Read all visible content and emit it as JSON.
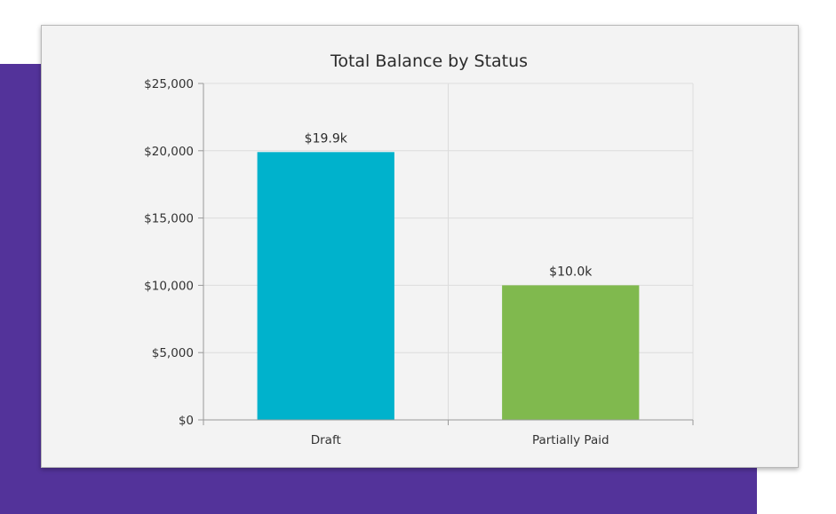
{
  "theme": {
    "backdrop_color": "#53339a",
    "card_background": "#f3f3f3",
    "grid_color": "#dcdcdc",
    "axis_color": "#9a9a9a"
  },
  "chart_data": {
    "type": "bar",
    "title": "Total Balance by Status",
    "xlabel": "",
    "ylabel": "",
    "categories": [
      "Draft",
      "Partially Paid"
    ],
    "values": [
      19900,
      10000
    ],
    "value_labels": [
      "$19.9k",
      "$10.0k"
    ],
    "colors": [
      "#00b2cc",
      "#80b94e"
    ],
    "ylim": [
      0,
      25000
    ],
    "y_ticks": [
      0,
      5000,
      10000,
      15000,
      20000,
      25000
    ],
    "y_tick_labels": [
      "$0",
      "$5,000",
      "$10,000",
      "$15,000",
      "$20,000",
      "$25,000"
    ],
    "grid": true,
    "legend": "none"
  }
}
